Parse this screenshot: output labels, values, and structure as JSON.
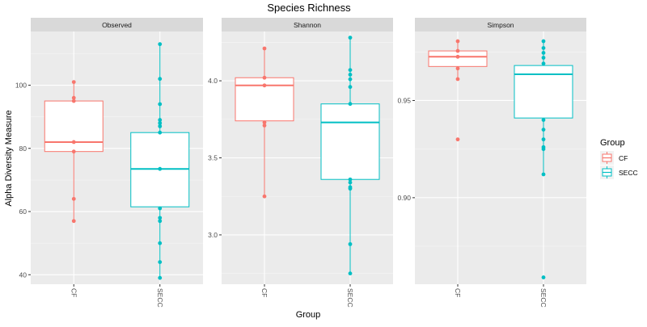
{
  "chart_data": {
    "type": "boxplot",
    "title": "Species Richness",
    "xlabel": "Group",
    "ylabel": "Alpha Diversity Measure",
    "categories": [
      "CF",
      "SECC"
    ],
    "colors": {
      "CF": "#F8766D",
      "SECC": "#00BFC4"
    },
    "legend": {
      "title": "Group",
      "position": "right",
      "entries": [
        "CF",
        "SECC"
      ]
    },
    "panels": [
      {
        "name": "Observed",
        "ylim": [
          37,
          117
        ],
        "yticks": [
          40,
          60,
          80,
          100
        ],
        "ytick_labels": [
          "40",
          "60",
          "80",
          "100"
        ],
        "boxes": {
          "CF": {
            "q1": 79,
            "median": 82,
            "q3": 95,
            "whisker_low": 57,
            "whisker_high": 101
          },
          "SECC": {
            "q1": 61.5,
            "median": 73.5,
            "q3": 85,
            "whisker_low": 39,
            "whisker_high": 113
          }
        },
        "points": {
          "CF": [
            101,
            96,
            95,
            82,
            79,
            64,
            57
          ],
          "SECC": [
            113,
            102,
            94,
            89,
            88,
            87,
            85,
            73.5,
            61,
            58,
            57,
            50,
            44,
            39
          ]
        }
      },
      {
        "name": "Shannon",
        "ylim": [
          2.68,
          4.32
        ],
        "yticks": [
          3.0,
          3.5,
          4.0
        ],
        "ytick_labels": [
          "3.0",
          "3.5",
          "4.0"
        ],
        "boxes": {
          "CF": {
            "q1": 3.74,
            "median": 3.97,
            "q3": 4.02,
            "whisker_low": 3.25,
            "whisker_high": 4.21
          },
          "SECC": {
            "q1": 3.36,
            "median": 3.73,
            "q3": 3.85,
            "whisker_low": 2.75,
            "whisker_high": 4.28
          }
        },
        "points": {
          "CF": [
            4.21,
            4.02,
            3.97,
            3.73,
            3.71,
            3.25
          ],
          "SECC": [
            4.28,
            4.07,
            4.04,
            4.01,
            3.96,
            3.85,
            3.36,
            3.34,
            3.31,
            3.3,
            2.94,
            2.75
          ]
        }
      },
      {
        "name": "Simpson",
        "ylim": [
          0.8555,
          0.9855
        ],
        "yticks": [
          0.9,
          0.95
        ],
        "ytick_labels": [
          "0.90",
          "0.95"
        ],
        "boxes": {
          "CF": {
            "q1": 0.9675,
            "median": 0.9725,
            "q3": 0.9755,
            "whisker_low": 0.961,
            "whisker_high": 0.9805
          },
          "SECC": {
            "q1": 0.941,
            "median": 0.9635,
            "q3": 0.968,
            "whisker_low": 0.912,
            "whisker_high": 0.9805
          }
        },
        "points": {
          "CF": [
            0.9805,
            0.9755,
            0.9725,
            0.9665,
            0.961,
            0.93
          ],
          "SECC": [
            0.9805,
            0.977,
            0.9745,
            0.972,
            0.969,
            0.94,
            0.935,
            0.93,
            0.926,
            0.925,
            0.912,
            0.859
          ]
        }
      }
    ]
  }
}
